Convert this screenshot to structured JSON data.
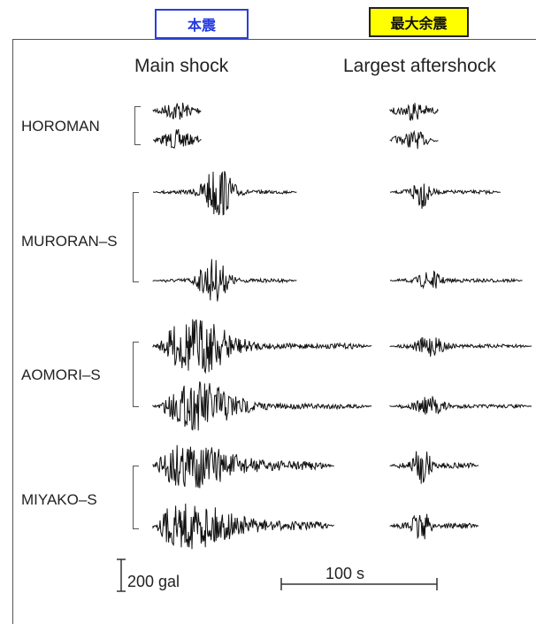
{
  "tags": {
    "main_jp": "本震",
    "after_jp": "最大余震"
  },
  "columns": {
    "main": "Main shock",
    "after": "Largest aftershock"
  },
  "stations": [
    {
      "name": "HOROMAN"
    },
    {
      "name": "MURORAN–S"
    },
    {
      "name": "AOMORI–S"
    },
    {
      "name": "MIYAKO–S"
    }
  ],
  "scale": {
    "amplitude": "200 gal",
    "time": "100 s"
  },
  "colors": {
    "trace": "#111111",
    "tag_main_border": "#2b3fd6",
    "tag_main_text": "#2338e0",
    "tag_after_bg": "#ffff00"
  }
}
